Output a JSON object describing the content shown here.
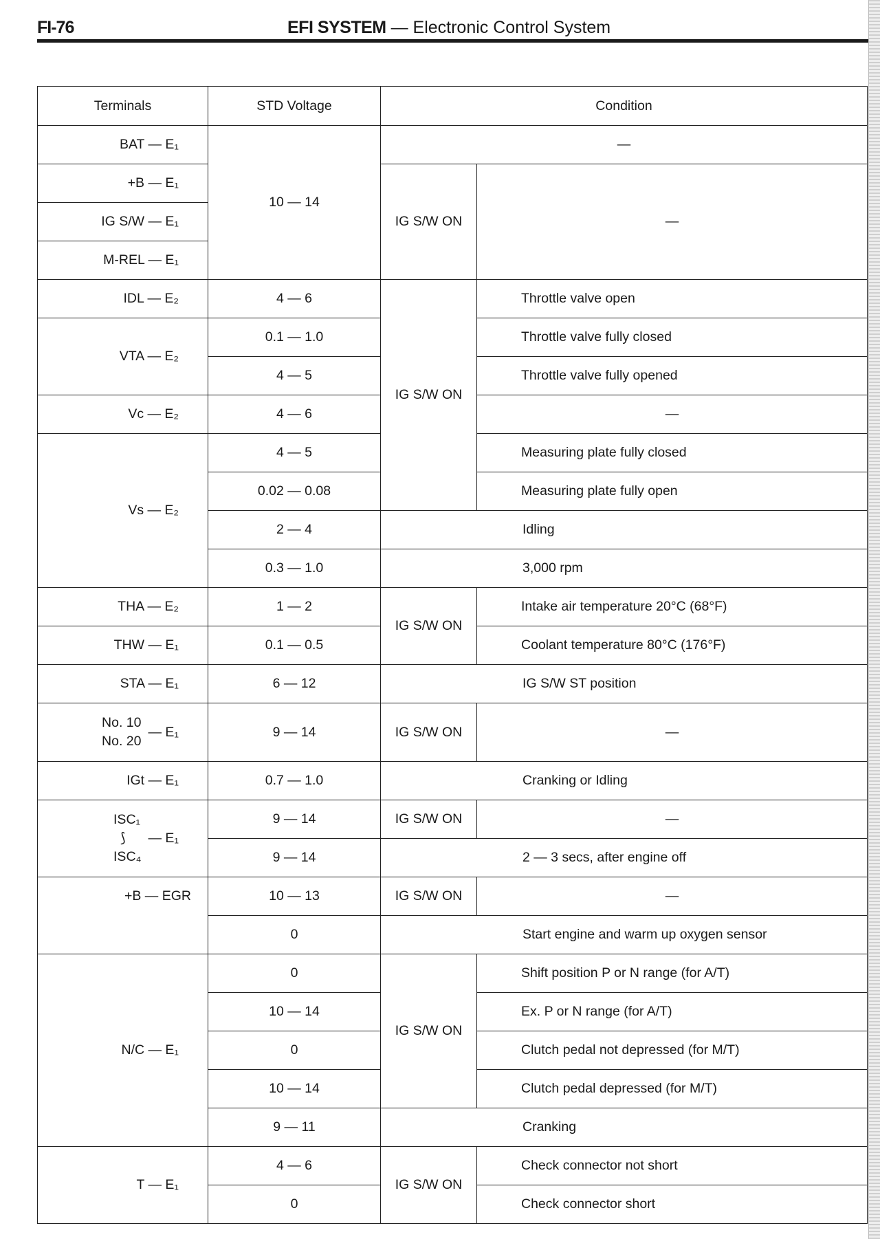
{
  "header": {
    "page_id": "FI-76",
    "title_bold": "EFI SYSTEM",
    "title_rest": " — Electronic Control System"
  },
  "table": {
    "columns": [
      "Terminals",
      "STD Voltage",
      "Condition"
    ],
    "dash": "—",
    "ig_on": "IG S/W ON",
    "terminals": {
      "bat": "BAT — E₁",
      "b": "+B — E₁",
      "igsw": "IG S/W — E₁",
      "mrel": "M-REL — E₁",
      "idl": "IDL — E₂",
      "vta": "VTA — E₂",
      "vc": "Vc — E₂",
      "vs": "Vs — E₂",
      "tha": "THA — E₂",
      "thw": "THW — E₁",
      "sta": "STA — E₁",
      "no10": "No. 10",
      "no20": "No. 20",
      "no_ground": "— E₁",
      "igt": "IGt — E₁",
      "isc1": "ISC₁",
      "isc_tilde": "⟆",
      "isc4": "ISC₄",
      "isc_ground": "— E₁",
      "begr": "+B — EGR",
      "nc": "N/C — E₁",
      "t": "T — E₁"
    },
    "voltages": [
      "10 — 14",
      "4 — 6",
      "0.1 — 1.0",
      "4 — 5",
      "4 — 6",
      "4 — 5",
      "0.02 — 0.08",
      "2 — 4",
      "0.3 — 1.0",
      "1 — 2",
      "0.1 — 0.5",
      "6 — 12",
      "9 — 14",
      "0.7 — 1.0",
      "9 — 14",
      "9 — 14",
      "10 — 13",
      "0",
      "0",
      "10 — 14",
      "0",
      "10 — 14",
      "9 — 11",
      "4 — 6",
      "0"
    ],
    "conditions": {
      "idl": "Throttle valve open",
      "vta1": "Throttle valve fully closed",
      "vta2": "Throttle valve fully opened",
      "vs1": "Measuring plate fully closed",
      "vs2": "Measuring plate fully open",
      "vs3": "Idling",
      "vs4": "3,000 rpm",
      "tha": "Intake air temperature 20°C (68°F)",
      "thw": "Coolant temperature 80°C (176°F)",
      "sta": "IG S/W ST position",
      "igt": "Cranking or Idling",
      "isc2": "2 — 3 secs, after engine off",
      "egr2": "Start engine and warm up oxygen sensor",
      "nc1": "Shift position P or N range (for A/T)",
      "nc2": "Ex. P or N range (for A/T)",
      "nc3": "Clutch pedal not depressed (for M/T)",
      "nc4": "Clutch pedal depressed (for M/T)",
      "nc5": "Cranking",
      "t1": "Check connector not short",
      "t2": "Check connector short"
    }
  }
}
